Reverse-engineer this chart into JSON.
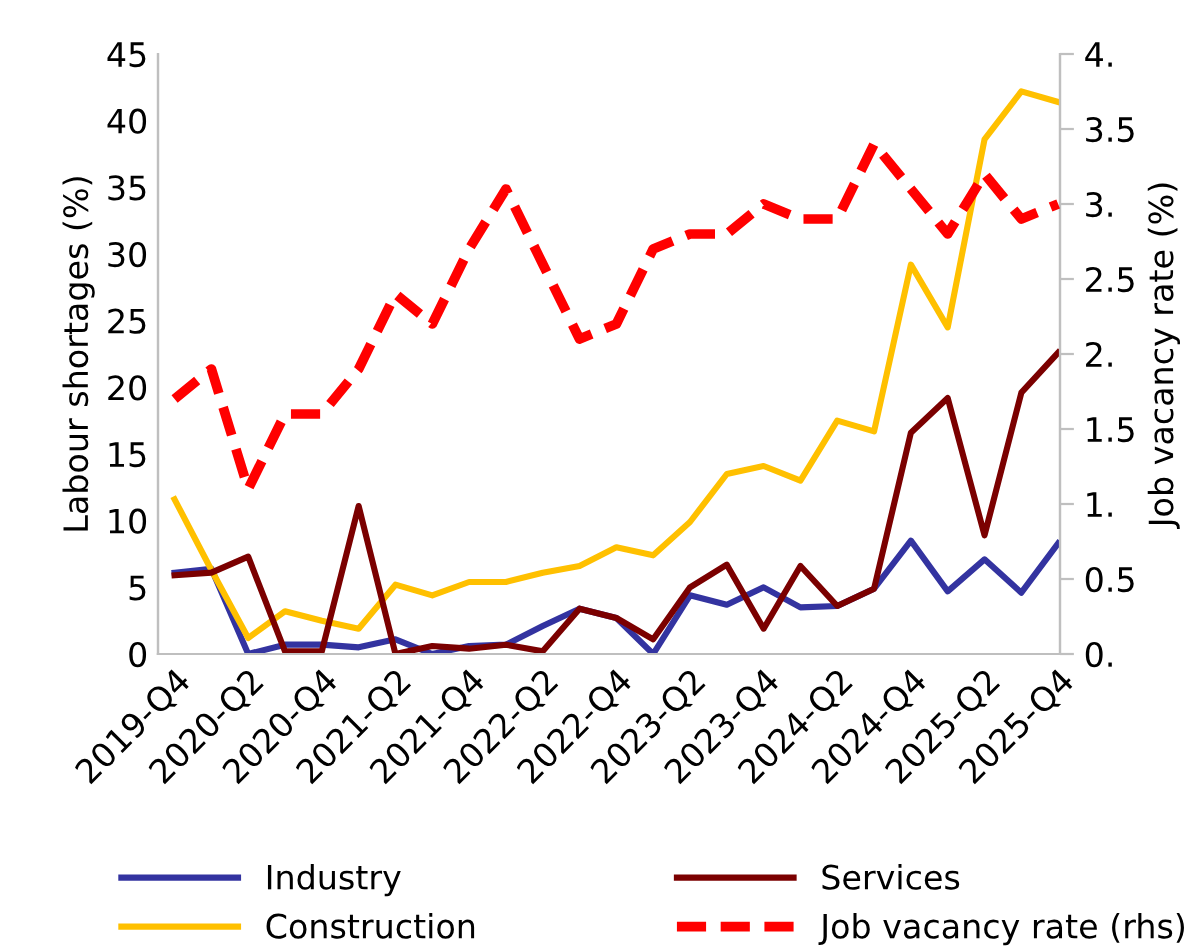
{
  "chart_data": {
    "type": "line",
    "ylabel": "Labour shortages (%)",
    "y2label": "Job vacancy rate (%)",
    "categories": [
      "2019-Q4",
      null,
      "2020-Q2",
      null,
      "2020-Q4",
      null,
      "2021-Q2",
      null,
      "2021-Q4",
      null,
      "2022-Q2",
      null,
      "2022-Q4",
      null,
      "2023-Q2",
      null,
      "2023-Q4",
      null,
      "2024-Q2",
      null,
      "2024-Q4",
      null,
      "2025-Q2",
      null,
      "2025-Q4"
    ],
    "series": [
      {
        "name": "Industry",
        "color": "#3333a0",
        "values": [
          6.1,
          6.4,
          0,
          0.7,
          0.7,
          0.5,
          1.1,
          0,
          0.6,
          0.7,
          2.1,
          3.4,
          2.7,
          0,
          4.4,
          3.7,
          5.0,
          3.5,
          3.6,
          4.9,
          8.5,
          4.7,
          7.1,
          4.6,
          8.3
        ]
      },
      {
        "name": "Construction",
        "color": "#ffc000",
        "values": [
          11.6,
          6.3,
          1.2,
          3.2,
          2.5,
          1.9,
          5.2,
          4.4,
          5.4,
          5.4,
          6.1,
          6.6,
          8.0,
          7.4,
          9.9,
          13.5,
          14.1,
          13.0,
          17.5,
          16.7,
          29.2,
          24.5,
          38.6,
          42.2,
          41.4
        ]
      },
      {
        "name": "Services",
        "color": "#7b0000",
        "values": [
          5.9,
          6.1,
          7.3,
          0.2,
          0.2,
          11.1,
          0,
          0.6,
          0.4,
          0.7,
          0.2,
          3.4,
          2.7,
          1.1,
          5.0,
          6.7,
          1.9,
          6.6,
          3.6,
          4.9,
          16.6,
          19.2,
          8.9,
          19.6,
          22.6
        ]
      },
      {
        "name": "Job vacancy rate (rhs)",
        "color": "#ff0000",
        "axis": "y2",
        "line_style": "dashed",
        "values": [
          1.7,
          1.9,
          1.1,
          1.6,
          1.6,
          1.9,
          2.4,
          2.2,
          2.7,
          3.1,
          2.6,
          2.1,
          2.2,
          2.7,
          2.8,
          2.8,
          3.0,
          2.9,
          2.9,
          3.4,
          3.1,
          2.8,
          3.2,
          2.9,
          3.0
        ]
      }
    ],
    "ylim": [
      0,
      45
    ],
    "yticks": [
      0,
      5,
      10,
      15,
      20,
      25,
      30,
      35,
      40,
      45
    ],
    "y2lim": [
      0,
      4
    ],
    "y2ticks": [
      {
        "value": 0,
        "label": "0."
      },
      0.5,
      {
        "value": 1,
        "label": "1."
      },
      1.5,
      {
        "value": 2,
        "label": "2."
      },
      2.5,
      {
        "value": 3,
        "label": "3."
      },
      3.5,
      {
        "value": 4,
        "label": "4."
      }
    ],
    "grid": false,
    "legend": "bottom",
    "marker": "none"
  }
}
